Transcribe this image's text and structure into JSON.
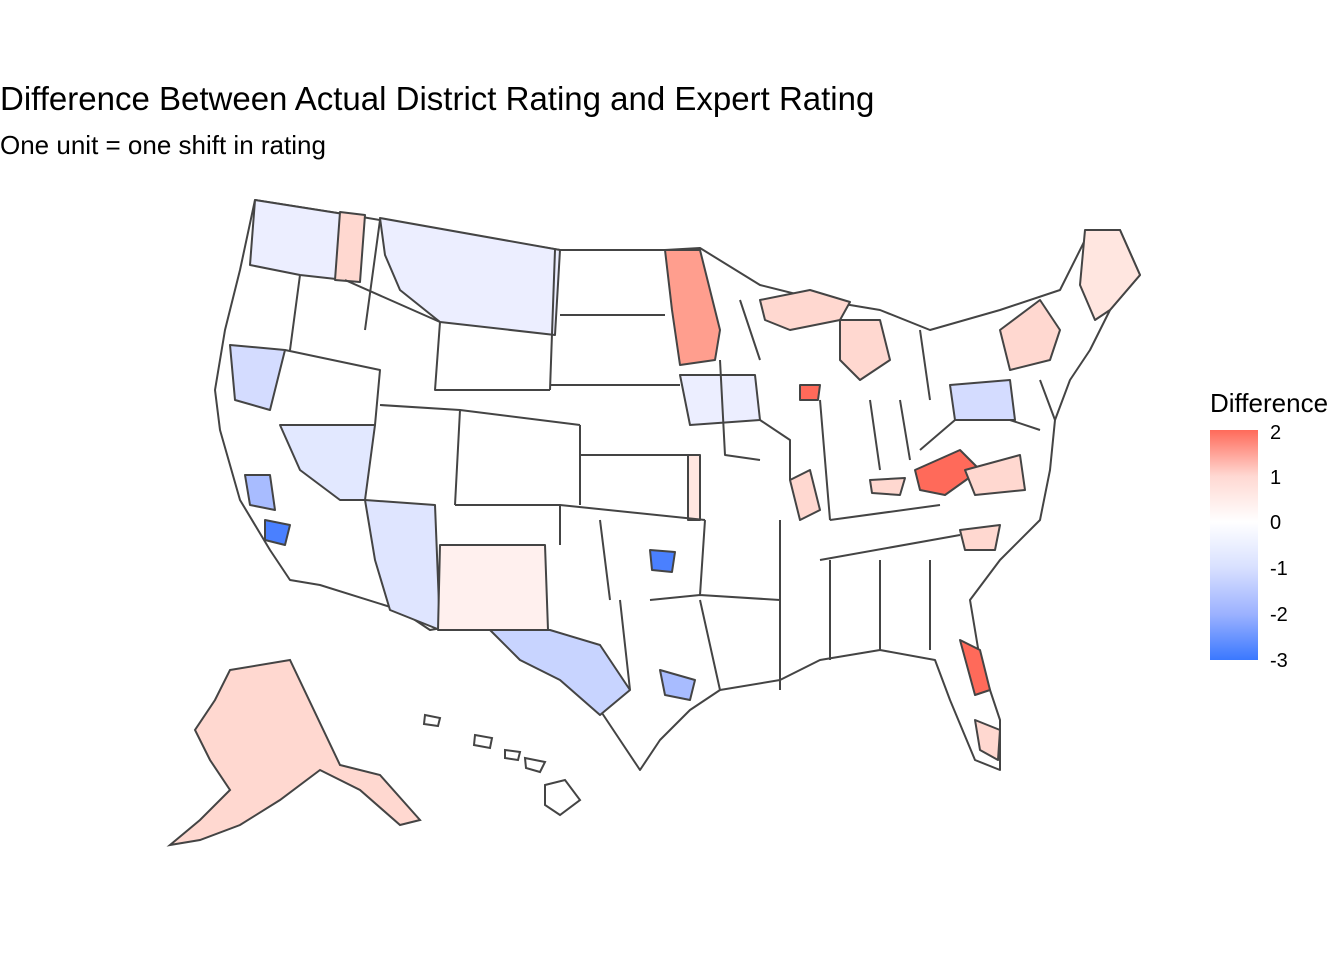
{
  "title": "Difference Between Actual District Rating and Expert Rating",
  "subtitle": "One unit = one shift in rating",
  "legend": {
    "title": "Difference",
    "ticks": [
      "2",
      "1",
      "0",
      "-1",
      "-2",
      "-3"
    ],
    "min": -3,
    "max": 2,
    "colors": {
      "high": "#ff6a5a",
      "mid": "#ffffff",
      "low": "#3a78ff"
    }
  },
  "map_colors": {
    "border": "#444444",
    "neutral": "#ffffff",
    "light_red": "#ffd8d0",
    "pale_red": "#fff0ee",
    "mid_red": "#ff9e8e",
    "strong_red": "#ff6a5a",
    "pale_blue": "#eceeff",
    "light_blue": "#d4dcff",
    "mid_blue": "#a8bcff",
    "strong_blue": "#4a80ff"
  }
}
